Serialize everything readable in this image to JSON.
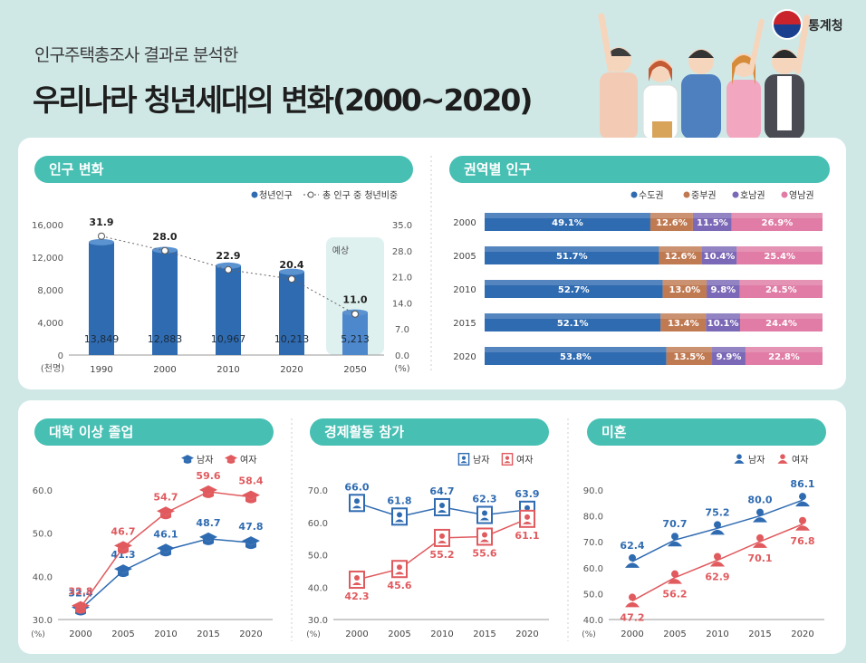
{
  "header": {
    "subtitle": "인구주택총조사 결과로 분석한",
    "title": "우리나라 청년세대의 변화(2000~2020)",
    "brand": "통계청"
  },
  "colors": {
    "background": "#cfe8e6",
    "pill": "#47bfb3",
    "blue": "#2f6bb1",
    "blue_dark": "#285ea0",
    "red": "#e05a5e",
    "brown": "#c07a52",
    "purple": "#7b68b6",
    "pink": "#e07ca5"
  },
  "panels": {
    "population": {
      "title": "인구 변화"
    },
    "region": {
      "title": "권역별 인구"
    },
    "college": {
      "title": "대학 이상 졸업"
    },
    "economy": {
      "title": "경제활동 참가"
    },
    "marriage": {
      "title": "미혼"
    }
  },
  "chart_data": [
    {
      "type": "bar",
      "title": "인구 변화",
      "categories": [
        "1990",
        "2000",
        "2010",
        "2020",
        "2050"
      ],
      "series": [
        {
          "name": "청년인구",
          "values": [
            13849,
            12883,
            10967,
            10213,
            5213
          ],
          "labels": [
            "13,849",
            "12,883",
            "10,967",
            "10,213",
            "5,213"
          ],
          "axis": "left"
        },
        {
          "name": "총 인구 중 청년비중",
          "values": [
            31.9,
            28.0,
            22.9,
            20.4,
            11.0
          ],
          "labels": [
            "31.9",
            "28.0",
            "22.9",
            "20.4",
            "11.0"
          ],
          "axis": "right",
          "style": "dotted-line"
        }
      ],
      "ylim": [
        0,
        16000
      ],
      "y2lim": [
        0,
        35.0
      ],
      "yticks": [
        "16,000",
        "12,000",
        "8,000",
        "4,000",
        "0"
      ],
      "y2ticks": [
        "35.0",
        "28.0",
        "21.0",
        "14.0",
        "7.0",
        "0.0"
      ],
      "ylabel": "(천명)",
      "y2label": "(%)",
      "annotation": "예상",
      "legend": [
        "청년인구",
        "총 인구 중 청년비중"
      ]
    },
    {
      "type": "bar",
      "stacked": true,
      "orientation": "horizontal",
      "title": "권역별 인구",
      "categories": [
        "2000",
        "2005",
        "2010",
        "2015",
        "2020"
      ],
      "series": [
        {
          "name": "수도권",
          "values": [
            49.1,
            51.7,
            52.7,
            52.1,
            53.8
          ]
        },
        {
          "name": "중부권",
          "values": [
            12.6,
            12.6,
            13.0,
            13.4,
            13.5
          ]
        },
        {
          "name": "호남권",
          "values": [
            11.5,
            10.4,
            9.8,
            10.1,
            9.9
          ]
        },
        {
          "name": "영남권",
          "values": [
            26.9,
            25.4,
            24.5,
            24.4,
            22.8
          ]
        }
      ],
      "unit": "%"
    },
    {
      "type": "line",
      "title": "대학 이상 졸업",
      "categories": [
        "2000",
        "2005",
        "2010",
        "2015",
        "2020"
      ],
      "series": [
        {
          "name": "남자",
          "values": [
            32.4,
            41.3,
            46.1,
            48.7,
            47.8
          ],
          "labels": [
            "32.4",
            "41.3",
            "46.1",
            "48.7",
            "47.8"
          ]
        },
        {
          "name": "여자",
          "values": [
            32.8,
            46.7,
            54.7,
            59.6,
            58.4
          ],
          "labels": [
            "32.8",
            "46.7",
            "54.7",
            "59.6",
            "58.4"
          ]
        }
      ],
      "ylim": [
        30,
        60
      ],
      "yticks": [
        "60.0",
        "50.0",
        "40.0",
        "30.0"
      ],
      "ylabel": "(%)"
    },
    {
      "type": "line",
      "title": "경제활동 참가",
      "categories": [
        "2000",
        "2005",
        "2010",
        "2015",
        "2020"
      ],
      "series": [
        {
          "name": "남자",
          "values": [
            66.0,
            61.8,
            64.7,
            62.3,
            63.9
          ],
          "labels": [
            "66.0",
            "61.8",
            "64.7",
            "62.3",
            "63.9"
          ]
        },
        {
          "name": "여자",
          "values": [
            42.3,
            45.6,
            55.2,
            55.6,
            61.1
          ],
          "labels": [
            "42.3",
            "45.6",
            "55.2",
            "55.6",
            "61.1"
          ]
        }
      ],
      "ylim": [
        30,
        70
      ],
      "yticks": [
        "70.0",
        "60.0",
        "50.0",
        "40.0",
        "30.0"
      ],
      "ylabel": "(%)"
    },
    {
      "type": "line",
      "title": "미혼",
      "categories": [
        "2000",
        "2005",
        "2010",
        "2015",
        "2020"
      ],
      "series": [
        {
          "name": "남자",
          "values": [
            62.4,
            70.7,
            75.2,
            80.0,
            86.1
          ],
          "labels": [
            "62.4",
            "70.7",
            "75.2",
            "80.0",
            "86.1"
          ]
        },
        {
          "name": "여자",
          "values": [
            47.2,
            56.2,
            62.9,
            70.1,
            76.8
          ],
          "labels": [
            "47.2",
            "56.2",
            "62.9",
            "70.1",
            "76.8"
          ]
        }
      ],
      "ylim": [
        40,
        90
      ],
      "yticks": [
        "90.0",
        "80.0",
        "70.0",
        "60.0",
        "50.0",
        "40.0"
      ],
      "ylabel": "(%)"
    }
  ]
}
